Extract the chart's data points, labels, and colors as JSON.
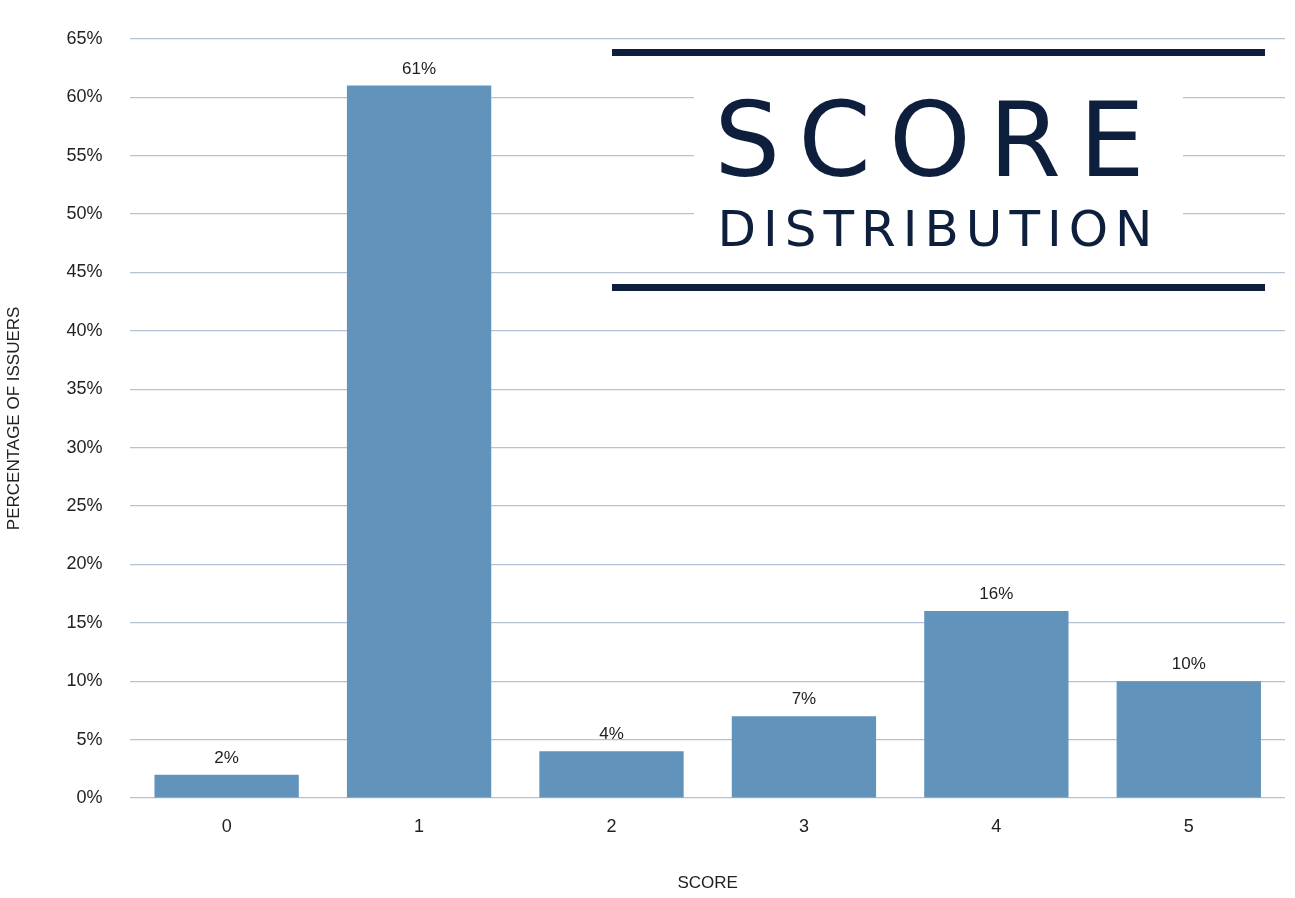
{
  "chart_data": {
    "type": "bar",
    "title": "SCORE",
    "subtitle": "DISTRIBUTION",
    "xlabel": "SCORE",
    "ylabel": "PERCENTAGE OF ISSUERS",
    "categories": [
      "0",
      "1",
      "2",
      "3",
      "4",
      "5"
    ],
    "values": [
      2,
      61,
      4,
      7,
      16,
      10
    ],
    "value_labels": [
      "2%",
      "61%",
      "4%",
      "7%",
      "16%",
      "10%"
    ],
    "color": "#6193bb",
    "ylim": [
      0,
      65
    ],
    "yticks": [
      {
        "value": 0,
        "label": "0%"
      },
      {
        "value": 5,
        "label": "5%"
      },
      {
        "value": 10,
        "label": "10%"
      },
      {
        "value": 15,
        "label": "15%"
      },
      {
        "value": 20,
        "label": "20%"
      },
      {
        "value": 25,
        "label": "25%"
      },
      {
        "value": 30,
        "label": "30%"
      },
      {
        "value": 35,
        "label": "35%"
      },
      {
        "value": 40,
        "label": "40%"
      },
      {
        "value": 45,
        "label": "45%"
      },
      {
        "value": 50,
        "label": "50%"
      },
      {
        "value": 55,
        "label": "55%"
      },
      {
        "value": 60,
        "label": "60%"
      },
      {
        "value": 65,
        "label": "65%"
      }
    ],
    "grid": "y",
    "legend": false
  }
}
